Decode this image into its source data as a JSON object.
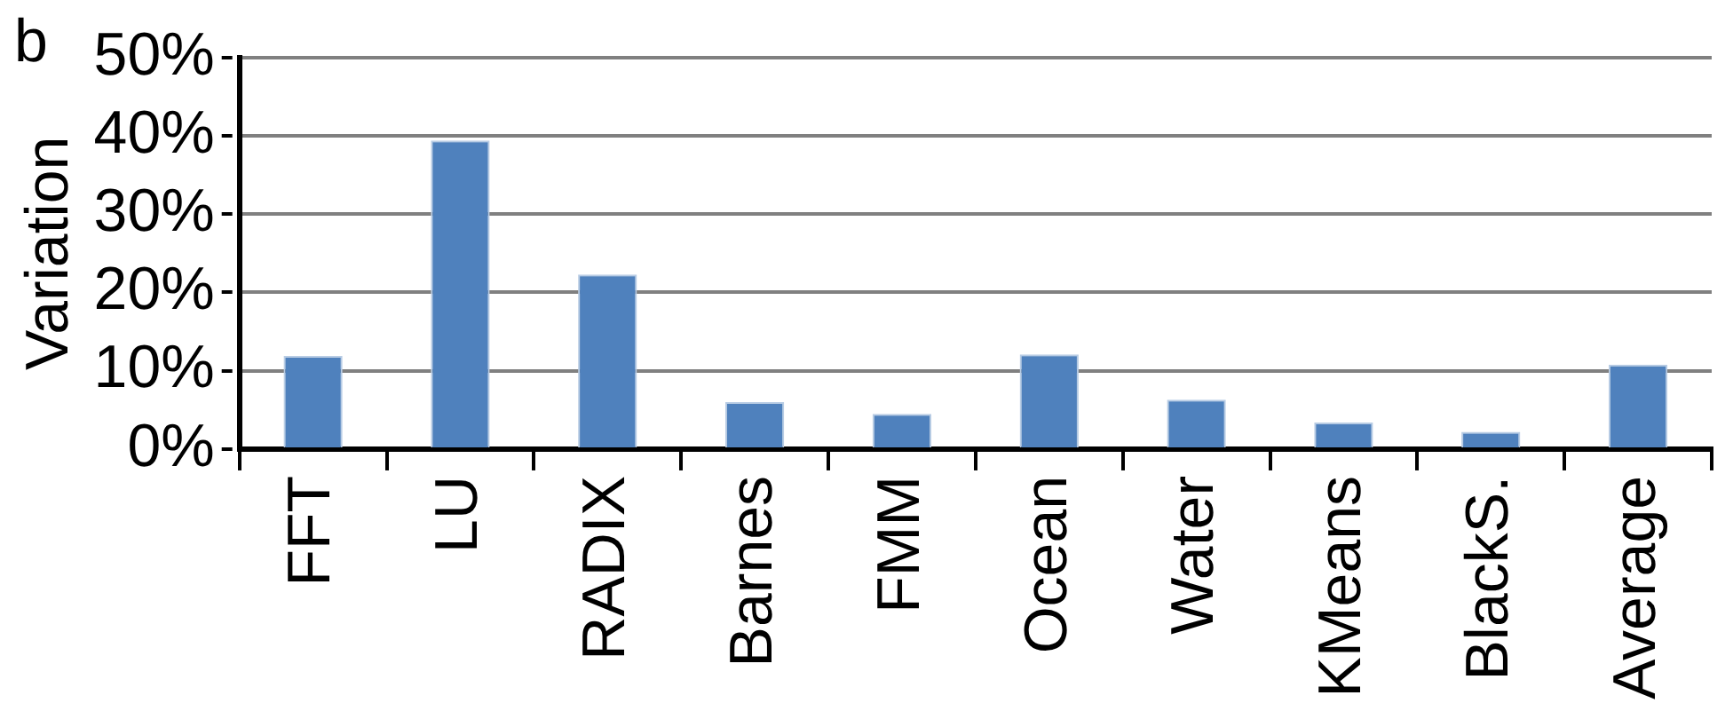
{
  "chart_data": {
    "type": "bar",
    "ylabel": "Variation",
    "annotations": [
      "b"
    ],
    "categories": [
      "FFT",
      "LU",
      "RADIX",
      "Barnes",
      "FMM",
      "Ocean",
      "Water",
      "KMeans",
      "BlackS.",
      "Average"
    ],
    "values": [
      11.9,
      39.4,
      22.3,
      6.0,
      4.5,
      12.1,
      6.3,
      3.4,
      2.2,
      10.8
    ],
    "color": "#4f81bd",
    "ylim": [
      0,
      50
    ],
    "yticks": [
      {
        "value": 0,
        "label": "0%"
      },
      {
        "value": 10,
        "label": "10%"
      },
      {
        "value": 20,
        "label": "20%"
      },
      {
        "value": 30,
        "label": "30%"
      },
      {
        "value": 40,
        "label": "40%"
      },
      {
        "value": 50,
        "label": "50%"
      }
    ],
    "grid": "y"
  }
}
